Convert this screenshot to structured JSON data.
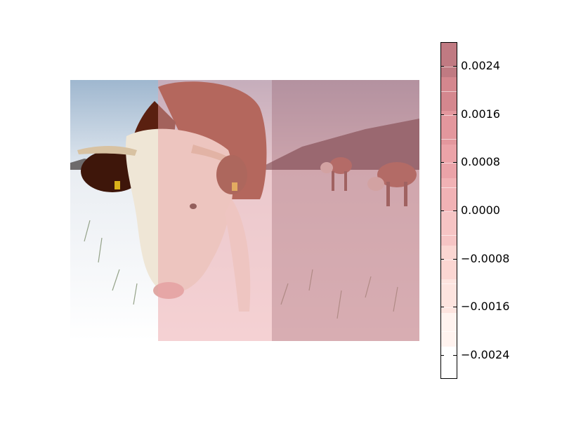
{
  "overlay": {
    "colormap_colors": [
      "#ffffff",
      "#fff3ef",
      "#fde4df",
      "#fbd6d2",
      "#f6c4c4",
      "#f1b2b5",
      "#eba3a8",
      "#e3979d",
      "#d4878e",
      "#c07a82"
    ],
    "column_values": [
      -0.0024,
      0.0006,
      0.0026
    ]
  },
  "colorbar": {
    "ticks": [
      {
        "value": 0.0024,
        "label": "0.0024"
      },
      {
        "value": 0.0016,
        "label": "0.0016"
      },
      {
        "value": 0.0008,
        "label": "0.0008"
      },
      {
        "value": 0.0,
        "label": "0.0000"
      },
      {
        "value": -0.0008,
        "label": "−0.0008"
      },
      {
        "value": -0.0016,
        "label": "−0.0016"
      },
      {
        "value": -0.0024,
        "label": "−0.0024"
      }
    ]
  }
}
